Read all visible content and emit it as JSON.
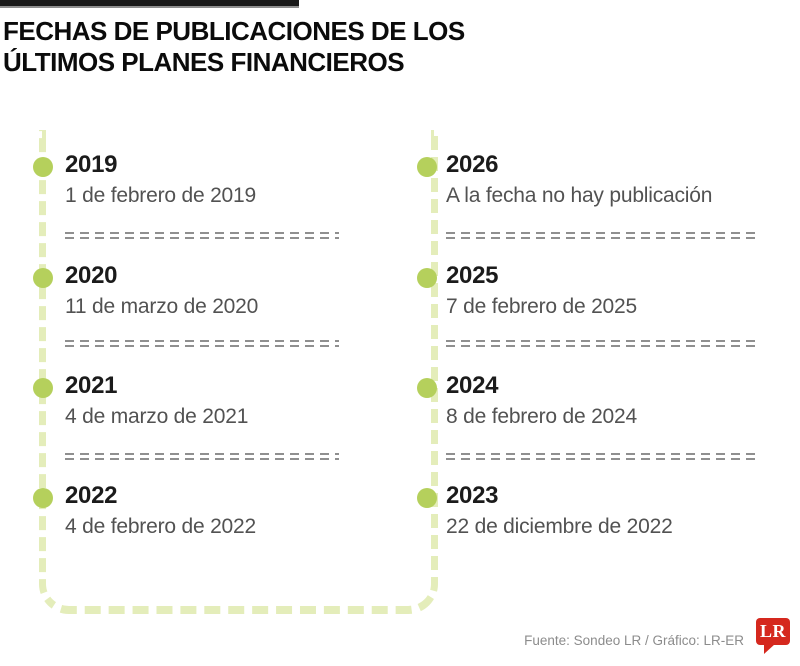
{
  "header": {
    "title_line1": "FECHAS DE PUBLICACIONES DE LOS",
    "title_line2": "ÚLTIMOS PLANES FINANCIEROS"
  },
  "timeline": {
    "left_column": [
      {
        "year": "2019",
        "date": "1 de febrero de 2019"
      },
      {
        "year": "2020",
        "date": "11 de marzo de 2020"
      },
      {
        "year": "2021",
        "date": "4 de marzo de 2021"
      },
      {
        "year": "2022",
        "date": "4 de febrero de 2022"
      }
    ],
    "right_column": [
      {
        "year": "2026",
        "date": "A la fecha no hay publicación"
      },
      {
        "year": "2025",
        "date": "7 de febrero de 2025"
      },
      {
        "year": "2024",
        "date": "8 de febrero de 2024"
      },
      {
        "year": "2023",
        "date": "22 de diciembre de 2022"
      }
    ]
  },
  "footer": {
    "source": "Fuente: Sondeo LR / Gráfico: LR-ER",
    "logo_text": "LR"
  },
  "colors": {
    "accent_green": "#b5d05c",
    "pale_green": "#e4edba",
    "separator_gray": "#8f8f8f",
    "logo_red": "#d5281e"
  }
}
